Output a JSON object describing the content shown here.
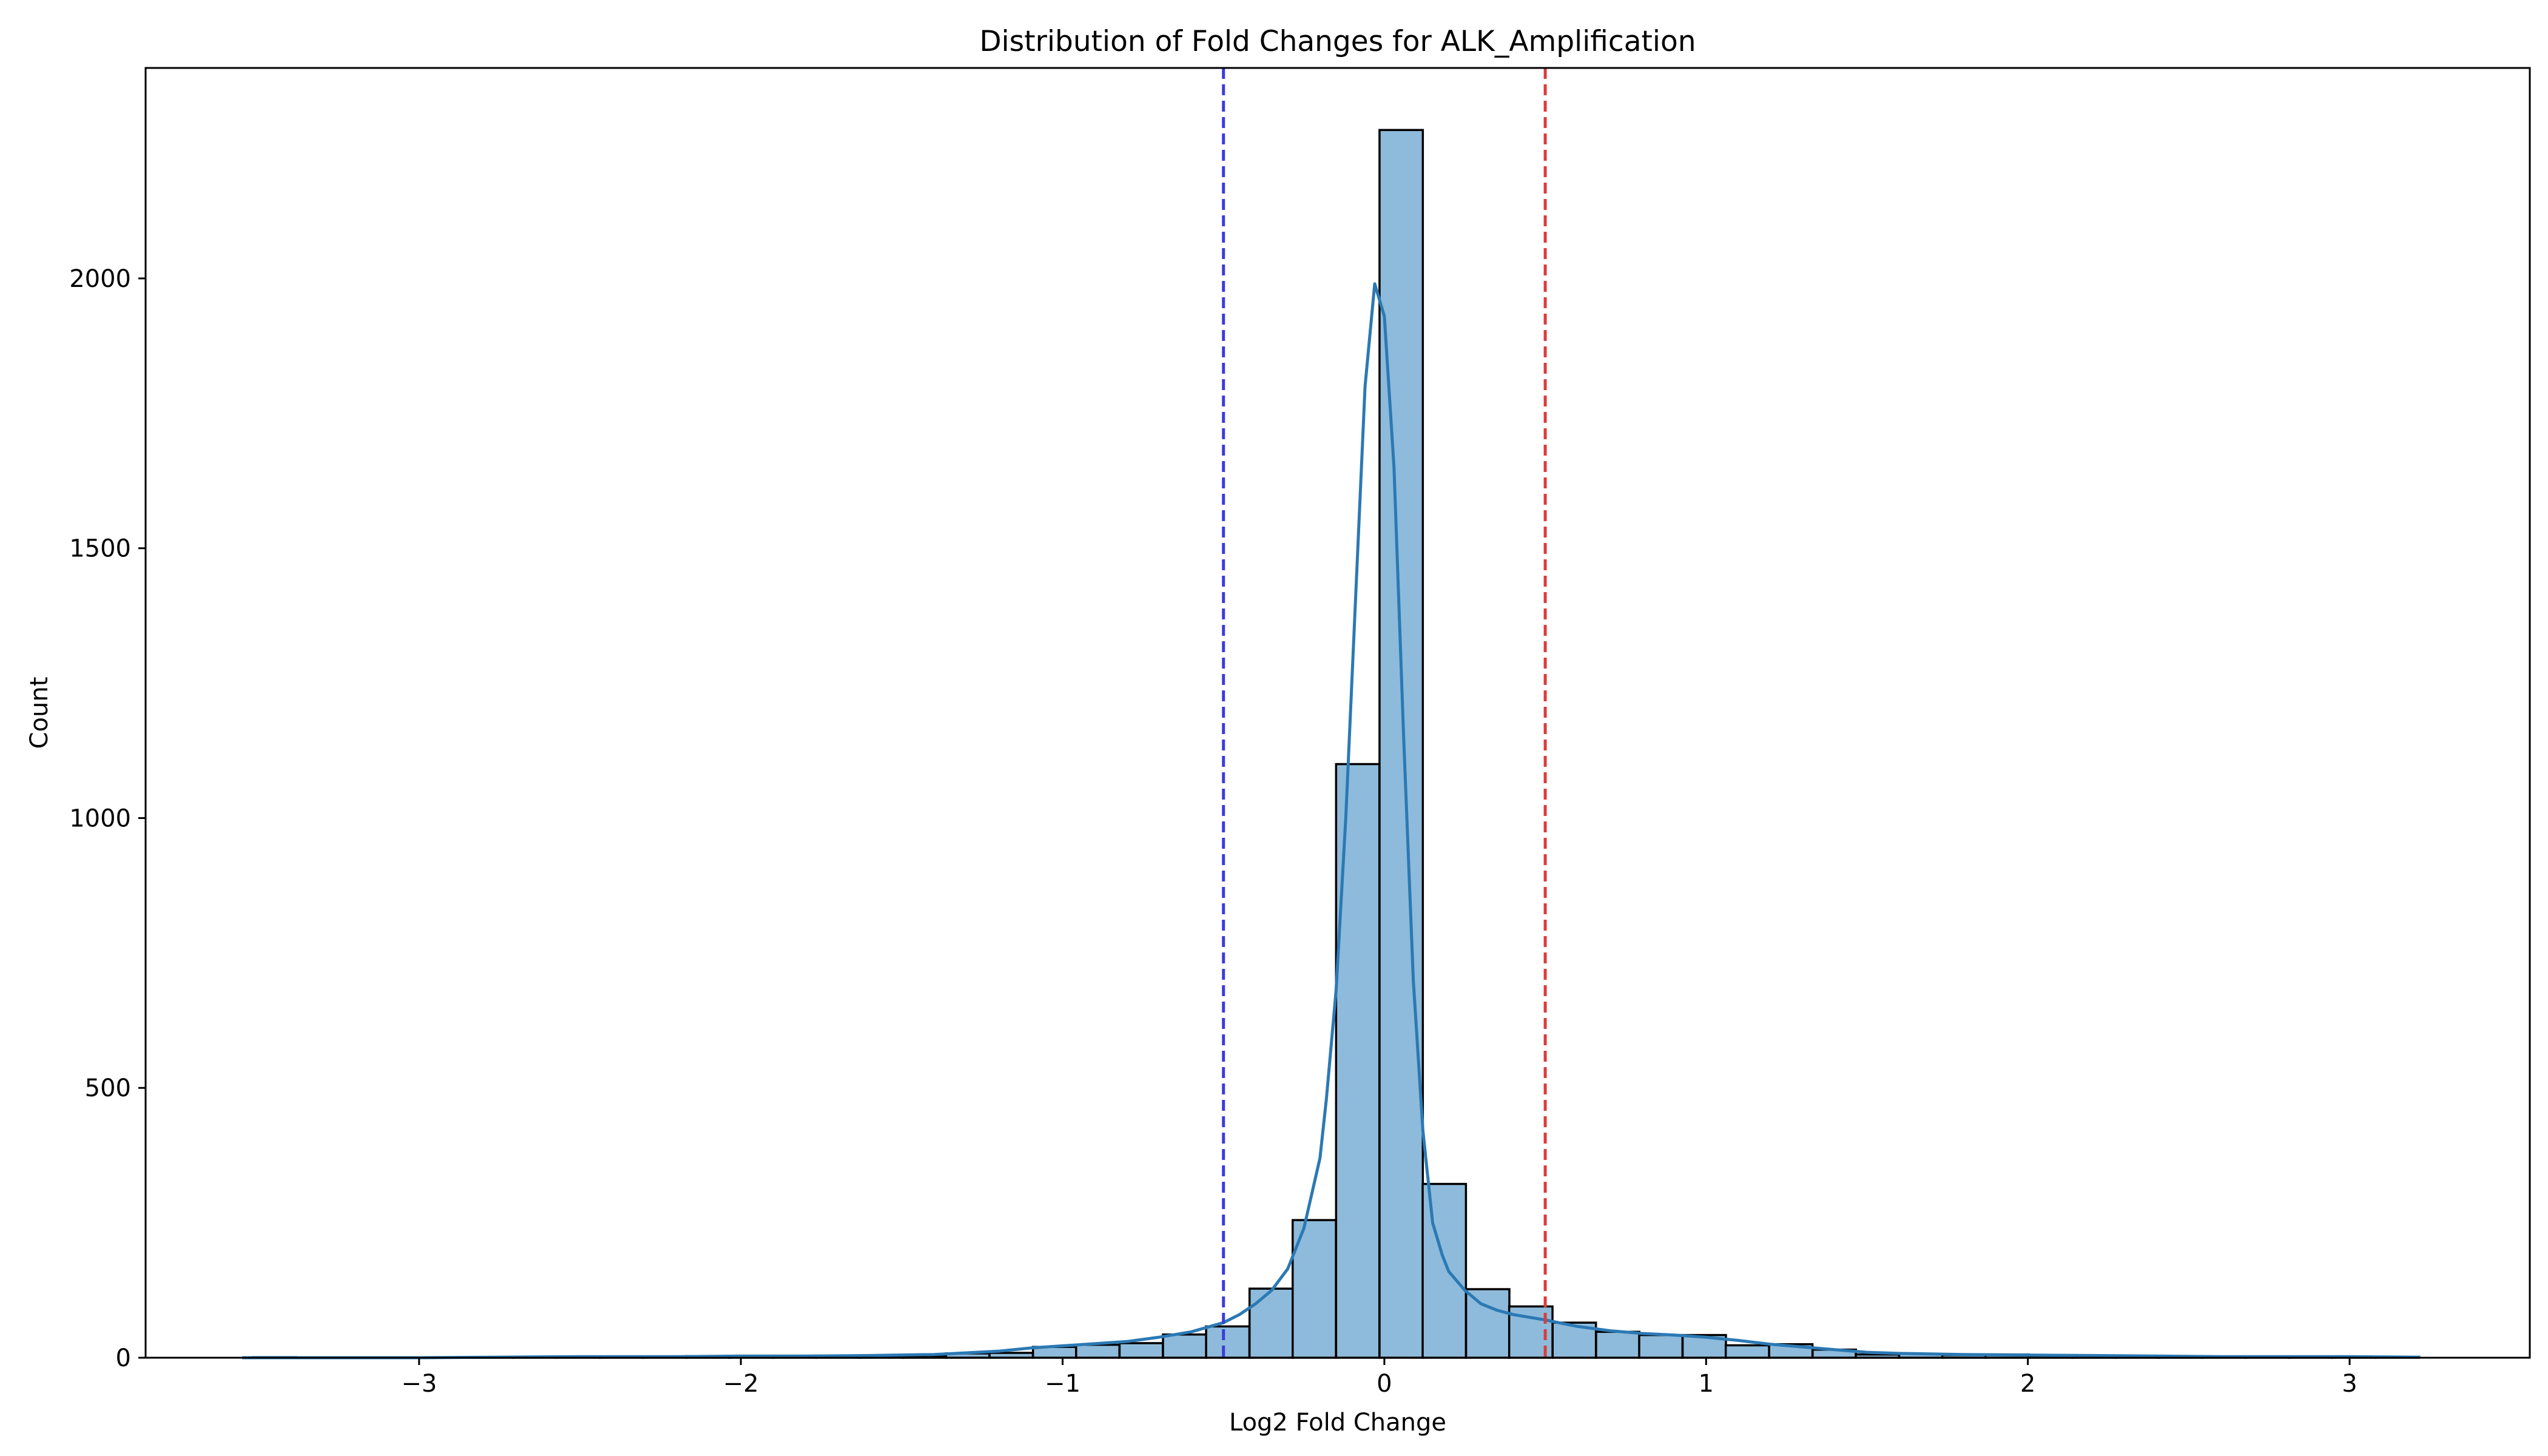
{
  "chart_data": {
    "type": "bar",
    "title": "Distribution of Fold Changes for ALK_Amplification",
    "xlabel": "Log2 Fold Change",
    "ylabel": "Count",
    "xlim": [
      -3.85,
      3.56
    ],
    "ylim": [
      0,
      2390
    ],
    "xticks": [
      -3,
      -2,
      -1,
      0,
      1,
      2,
      3
    ],
    "xtick_labels": [
      "−3",
      "−2",
      "−1",
      "0",
      "1",
      "2",
      "3"
    ],
    "yticks": [
      0,
      500,
      1000,
      1500,
      2000
    ],
    "ytick_labels": [
      "0",
      "500",
      "1000",
      "1500",
      "2000"
    ],
    "grid": false,
    "bin_width": 0.1346,
    "bins": [
      {
        "x0": -3.515,
        "count": 1
      },
      {
        "x0": -3.381,
        "count": 0
      },
      {
        "x0": -3.246,
        "count": 0
      },
      {
        "x0": -3.111,
        "count": 0
      },
      {
        "x0": -2.977,
        "count": 0
      },
      {
        "x0": -2.842,
        "count": 1
      },
      {
        "x0": -2.708,
        "count": 1
      },
      {
        "x0": -2.573,
        "count": 2
      },
      {
        "x0": -2.438,
        "count": 2
      },
      {
        "x0": -2.304,
        "count": 1
      },
      {
        "x0": -2.169,
        "count": 3
      },
      {
        "x0": -2.035,
        "count": 2
      },
      {
        "x0": -1.9,
        "count": 2
      },
      {
        "x0": -1.765,
        "count": 3
      },
      {
        "x0": -1.631,
        "count": 3
      },
      {
        "x0": -1.496,
        "count": 3
      },
      {
        "x0": -1.362,
        "count": 8
      },
      {
        "x0": -1.227,
        "count": 9
      },
      {
        "x0": -1.092,
        "count": 20
      },
      {
        "x0": -0.958,
        "count": 24
      },
      {
        "x0": -0.823,
        "count": 27
      },
      {
        "x0": -0.688,
        "count": 43
      },
      {
        "x0": -0.554,
        "count": 58
      },
      {
        "x0": -0.419,
        "count": 128
      },
      {
        "x0": -0.285,
        "count": 255
      },
      {
        "x0": -0.15,
        "count": 1100
      },
      {
        "x0": -0.015,
        "count": 2275
      },
      {
        "x0": 0.119,
        "count": 322
      },
      {
        "x0": 0.254,
        "count": 127
      },
      {
        "x0": 0.388,
        "count": 95
      },
      {
        "x0": 0.523,
        "count": 65
      },
      {
        "x0": 0.658,
        "count": 48
      },
      {
        "x0": 0.792,
        "count": 42
      },
      {
        "x0": 0.927,
        "count": 42
      },
      {
        "x0": 1.061,
        "count": 23
      },
      {
        "x0": 1.196,
        "count": 25
      },
      {
        "x0": 1.331,
        "count": 15
      },
      {
        "x0": 1.465,
        "count": 6
      },
      {
        "x0": 1.6,
        "count": 7
      },
      {
        "x0": 1.734,
        "count": 5
      },
      {
        "x0": 1.869,
        "count": 6
      },
      {
        "x0": 2.004,
        "count": 4
      },
      {
        "x0": 2.138,
        "count": 3
      },
      {
        "x0": 2.273,
        "count": 2
      },
      {
        "x0": 2.407,
        "count": 2
      },
      {
        "x0": 2.542,
        "count": 1
      },
      {
        "x0": 2.677,
        "count": 1
      },
      {
        "x0": 2.811,
        "count": 1
      },
      {
        "x0": 2.946,
        "count": 1
      },
      {
        "x0": 3.08,
        "count": 1
      }
    ],
    "kde": {
      "x": [
        -3.55,
        -3.0,
        -2.5,
        -2.2,
        -2.0,
        -1.8,
        -1.6,
        -1.4,
        -1.2,
        -1.1,
        -1.0,
        -0.9,
        -0.8,
        -0.7,
        -0.6,
        -0.5,
        -0.45,
        -0.4,
        -0.35,
        -0.3,
        -0.25,
        -0.2,
        -0.18,
        -0.15,
        -0.12,
        -0.09,
        -0.06,
        -0.03,
        0.0,
        0.03,
        0.06,
        0.09,
        0.12,
        0.15,
        0.18,
        0.2,
        0.25,
        0.3,
        0.35,
        0.4,
        0.45,
        0.5,
        0.6,
        0.7,
        0.8,
        0.9,
        1.0,
        1.1,
        1.2,
        1.3,
        1.4,
        1.5,
        1.6,
        1.8,
        2.0,
        2.2,
        2.4,
        2.6,
        2.8,
        3.0,
        3.22
      ],
      "y": [
        0,
        0,
        2,
        2,
        3,
        3,
        4,
        6,
        12,
        18,
        22,
        26,
        30,
        38,
        48,
        65,
        80,
        100,
        125,
        165,
        240,
        370,
        480,
        680,
        1000,
        1400,
        1800,
        1990,
        1930,
        1650,
        1150,
        700,
        420,
        250,
        190,
        160,
        125,
        100,
        88,
        80,
        75,
        70,
        58,
        50,
        45,
        42,
        38,
        32,
        25,
        20,
        15,
        10,
        8,
        6,
        5,
        4,
        3,
        2,
        2,
        2,
        1
      ]
    },
    "vlines": [
      {
        "x": -0.5,
        "color": "#3b3bdd",
        "style": "dashed"
      },
      {
        "x": 0.5,
        "color": "#dd3b3b",
        "style": "dashed"
      }
    ],
    "colors": {
      "bar_fill": "#8ebbdb",
      "bar_edge": "#000000",
      "kde_line": "#2b79b4"
    }
  }
}
